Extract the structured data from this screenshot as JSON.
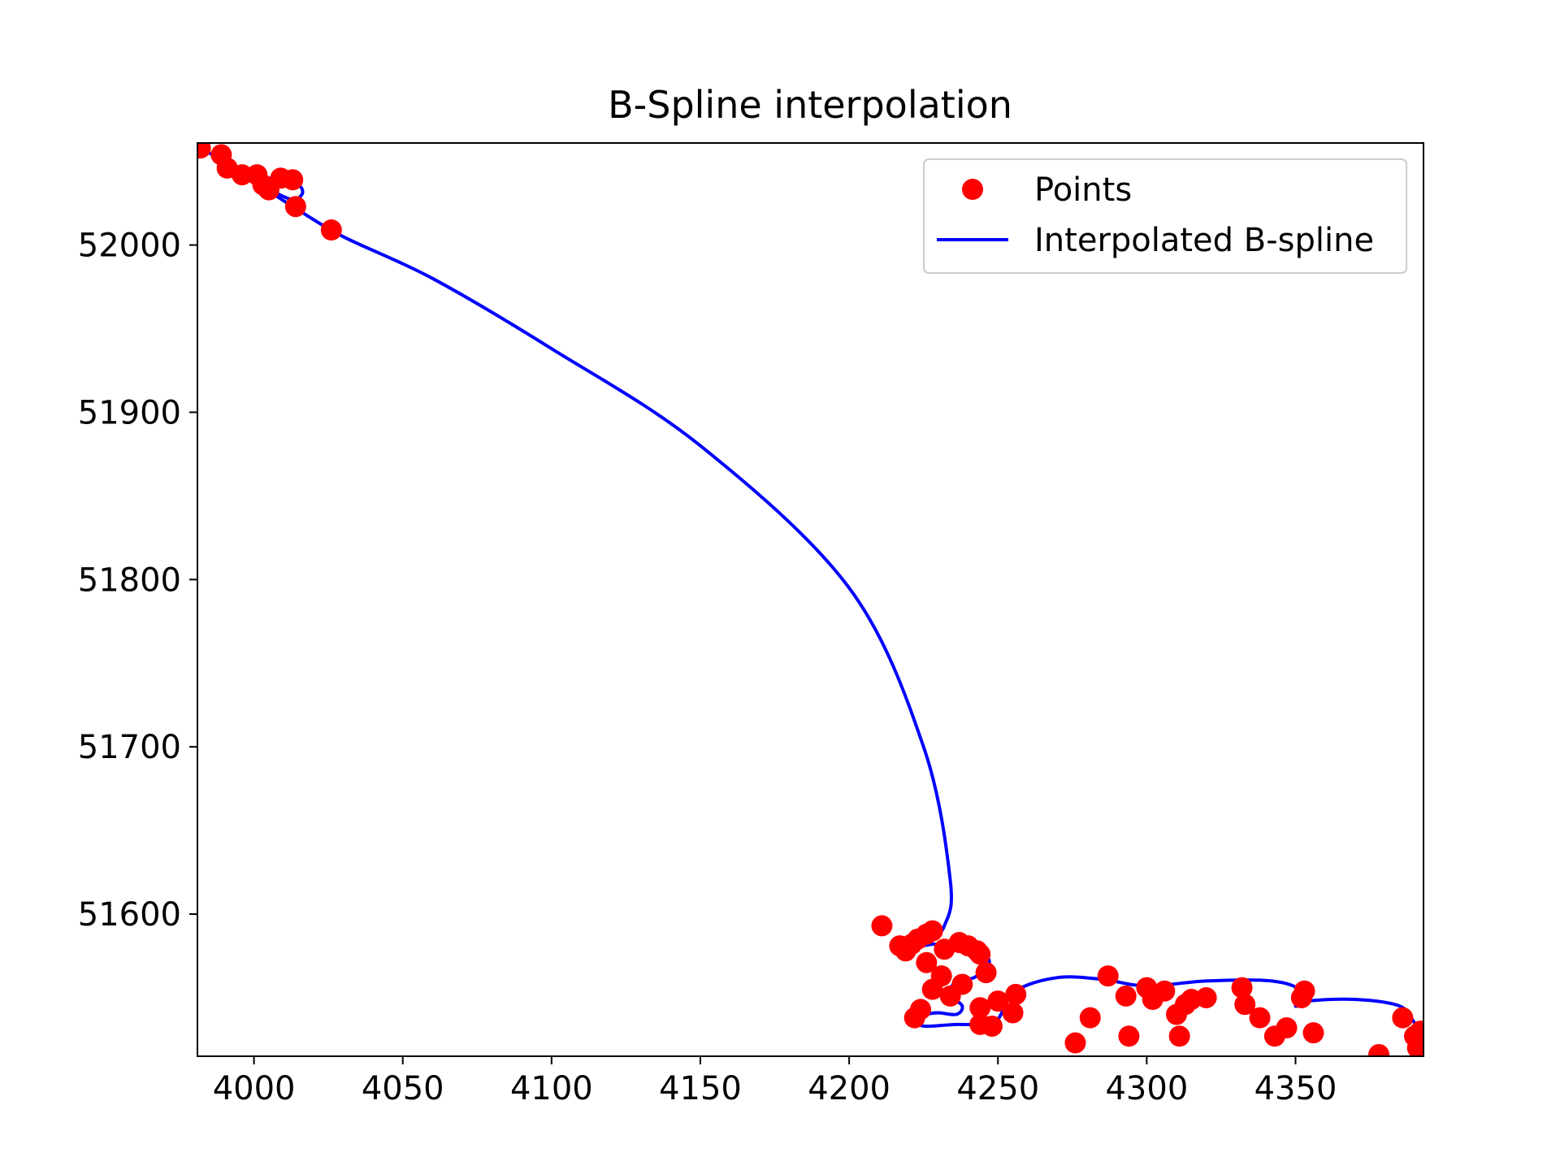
{
  "chart_data": {
    "type": "line",
    "title": "B-Spline interpolation",
    "xlabel": "",
    "ylabel": "",
    "xlim": [
      3981,
      4393
    ],
    "ylim": [
      51515,
      52061
    ],
    "xticks": [
      4000,
      4050,
      4100,
      4150,
      4200,
      4250,
      4300,
      4350
    ],
    "yticks": [
      51600,
      51700,
      51800,
      51900,
      52000
    ],
    "grid": false,
    "legend": {
      "placement": "top-right",
      "entries": [
        "Points",
        "Interpolated B-spline"
      ]
    },
    "colors": {
      "points": "#ff0000",
      "spline": "#0000ff"
    },
    "series": [
      {
        "name": "Points",
        "kind": "scatter",
        "x": [
          3982,
          3989,
          3991,
          3996,
          4001,
          4003,
          4005,
          4009,
          4013,
          4014,
          4026,
          4211,
          4217,
          4219,
          4221,
          4223,
          4226,
          4228,
          4232,
          4237,
          4240,
          4243,
          4244,
          4246,
          4222,
          4224,
          4226,
          4228,
          4231,
          4234,
          4238,
          4244,
          4248,
          4244,
          4250,
          4255,
          4256,
          4276,
          4281,
          4287,
          4293,
          4294,
          4300,
          4302,
          4306,
          4310,
          4311,
          4313,
          4315,
          4320,
          4332,
          4333,
          4338,
          4343,
          4347,
          4352,
          4353,
          4356,
          4378,
          4386,
          4390,
          4391,
          4392
        ],
        "y": [
          52058,
          52054,
          52046,
          52042,
          52042,
          52036,
          52033,
          52040,
          52039,
          52023,
          52009,
          51593,
          51581,
          51578,
          51582,
          51585,
          51588,
          51590,
          51579,
          51583,
          51581,
          51578,
          51576,
          51565,
          51538,
          51543,
          51571,
          51555,
          51563,
          51551,
          51558,
          51544,
          51533,
          51534,
          51548,
          51541,
          51552,
          51523,
          51538,
          51563,
          51551,
          51527,
          51556,
          51549,
          51554,
          51540,
          51527,
          51546,
          51549,
          51550,
          51556,
          51546,
          51538,
          51527,
          51532,
          51550,
          51554,
          51529,
          51516,
          51538,
          51527,
          51520,
          51530
        ]
      },
      {
        "name": "Interpolated B-spline",
        "kind": "line",
        "x": [
          3981,
          3990,
          3997,
          4003,
          4008,
          4013,
          4016,
          4016,
          4013,
          4005,
          4007,
          4014,
          4030,
          4060,
          4100,
          4150,
          4200,
          4225,
          4234,
          4232,
          4226,
          4222,
          4228,
          4234,
          4240,
          4245,
          4247,
          4242,
          4236,
          4234,
          4238,
          4236,
          4230,
          4226,
          4223,
          4225,
          4236,
          4246,
          4250,
          4256,
          4270,
          4285,
          4300,
          4320,
          4342,
          4352,
          4350,
          4354,
          4370,
          4385,
          4390,
          4393
        ],
        "y": [
          52059,
          52050,
          52043,
          52040,
          52040,
          52038,
          52034,
          52030,
          52027,
          52033,
          52030,
          52022,
          52005,
          51980,
          51938,
          51880,
          51795,
          51700,
          51620,
          51593,
          51582,
          51580,
          51582,
          51582,
          51582,
          51578,
          51570,
          51562,
          51560,
          51552,
          51545,
          51540,
          51541,
          51540,
          51537,
          51533,
          51534,
          51534,
          51537,
          51554,
          51562,
          51561,
          51557,
          51560,
          51560,
          51554,
          51545,
          51548,
          51549,
          51545,
          51535,
          51530
        ]
      }
    ]
  }
}
